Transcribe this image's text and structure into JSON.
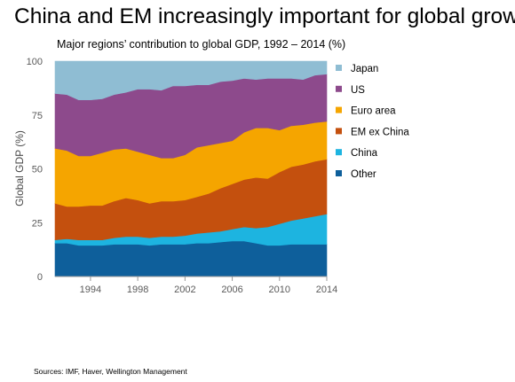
{
  "title": "China and EM increasingly important for global growth",
  "source": "Sources: IMF, Haver, Wellington Management",
  "chart_data": {
    "type": "area",
    "stacked": true,
    "subtitle": "Major regions’ contribution to global GDP, 1992 – 2014 (%)",
    "ylabel": "Global GDP (%)",
    "xlabel": "",
    "ylim": [
      0,
      100
    ],
    "xlim": [
      1991,
      2014
    ],
    "y_ticks": [
      0,
      25,
      50,
      75,
      100
    ],
    "x_ticks": [
      1994,
      1998,
      2002,
      2006,
      2010,
      2014
    ],
    "grid": false,
    "legend_position": "right",
    "x": [
      1991,
      1992,
      1993,
      1994,
      1995,
      1996,
      1997,
      1998,
      1999,
      2000,
      2001,
      2002,
      2003,
      2004,
      2005,
      2006,
      2007,
      2008,
      2009,
      2010,
      2011,
      2012,
      2013,
      2014
    ],
    "series": [
      {
        "name": "Other",
        "color": "#0e5f9b",
        "values": [
          15.5,
          15.5,
          14.5,
          14.5,
          14.5,
          15,
          15,
          15,
          14.5,
          15,
          15,
          15,
          15.5,
          15.5,
          16,
          16.5,
          16.5,
          15.5,
          14.5,
          14.5,
          15,
          15,
          15,
          15
        ]
      },
      {
        "name": "China",
        "color": "#1db4e0",
        "values": [
          1.5,
          2,
          2.5,
          2.5,
          2.5,
          3,
          3.5,
          3.5,
          3.5,
          3.5,
          3.5,
          4,
          4.5,
          5,
          5,
          5.5,
          6.5,
          7,
          8.5,
          10,
          11,
          12,
          13,
          14
        ]
      },
      {
        "name": "EM ex China",
        "color": "#c4500e",
        "values": [
          17,
          15,
          15.5,
          16,
          16,
          17,
          18,
          17,
          16,
          16.5,
          16.5,
          16.5,
          17,
          18,
          20,
          21,
          22,
          23.5,
          22.5,
          24,
          25,
          25,
          25.5,
          25.5
        ]
      },
      {
        "name": "Euro area",
        "color": "#f5a500",
        "values": [
          25.5,
          26,
          23.5,
          23,
          24.5,
          24,
          23,
          22.5,
          22.5,
          20,
          20,
          21,
          23,
          22.5,
          21,
          20,
          22,
          23,
          23.5,
          19.5,
          19,
          18.5,
          18,
          17.5
        ]
      },
      {
        "name": "US",
        "color": "#8d4a8c",
        "values": [
          25.5,
          26,
          26,
          26,
          25,
          25.5,
          26,
          29,
          30.5,
          31.5,
          33.5,
          32,
          29,
          28,
          28.5,
          28,
          25,
          22.5,
          23,
          24,
          22,
          21,
          22,
          22
        ]
      },
      {
        "name": "Japan",
        "color": "#8fbdd3",
        "values": [
          15,
          15.5,
          18,
          18,
          17.5,
          15.5,
          14.5,
          13,
          13,
          13.5,
          11.5,
          11.5,
          11,
          11,
          9.5,
          9,
          8,
          8.5,
          8,
          8,
          8,
          8.5,
          6.5,
          6
        ]
      }
    ],
    "legend_order": [
      "Japan",
      "US",
      "Euro area",
      "EM ex China",
      "China",
      "Other"
    ]
  }
}
